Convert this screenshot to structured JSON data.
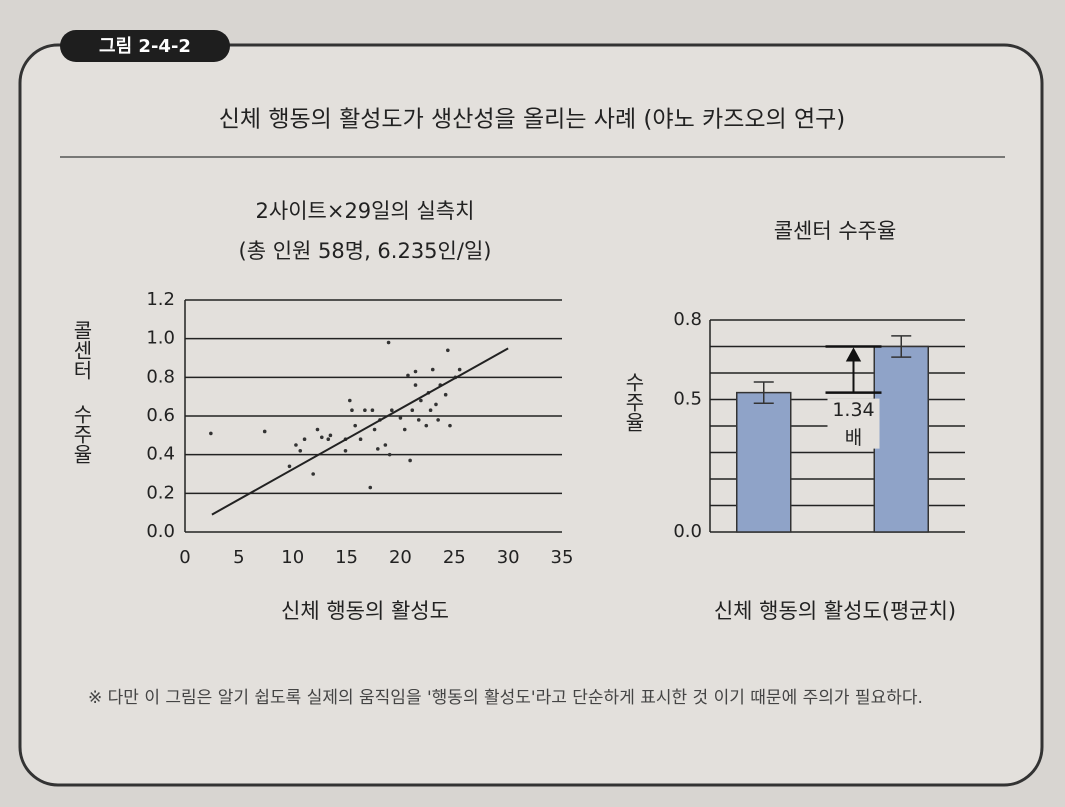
{
  "figure_label": "그림 2-4-2",
  "title": "신체 행동의 활성도가 생산성을 올리는 사례 (야노 카즈오의 연구)",
  "note": "※ 다만 이 그림은 알기 쉽도록 실제의 움직임을 '행동의 활성도'라고 단순하게 표시한 것 이기 때문에 주의가 필요하다.",
  "chart_data": [
    {
      "type": "scatter",
      "title": "2사이트×29일의 실측치",
      "subtitle": "(총 인원 58명, 6.235인/일)",
      "x_label": "신체 행동의 활성도",
      "y_label": "콜센터 수주율",
      "xlim": [
        0,
        35
      ],
      "xticks": [
        0,
        5,
        10,
        15,
        20,
        25,
        30,
        35
      ],
      "ylim": [
        0,
        1.2
      ],
      "yticks": [
        {
          "value": 0,
          "label": "0.0"
        },
        0.2,
        0.4,
        0.6,
        0.8,
        {
          "value": 1,
          "label": "1.0"
        },
        1.2
      ],
      "grid": true,
      "color": "#333333",
      "x": [
        2.4,
        7.4,
        9.7,
        10.3,
        10.7,
        11.1,
        11.9,
        12.3,
        12.7,
        13.3,
        13.5,
        14.9,
        15.3,
        15.5,
        15.8,
        16.3,
        16.7,
        17.2,
        17.4,
        17.6,
        17.9,
        18.1,
        18.6,
        18.9,
        19.0,
        19.2,
        20.0,
        20.4,
        20.9,
        20.7,
        21.1,
        21.4,
        21.7,
        21.9,
        22.4,
        22.6,
        22.8,
        23.0,
        23.3,
        23.5,
        23.7,
        24.2,
        24.4,
        24.6,
        25.1,
        25.5,
        14.9,
        21.4
      ],
      "values": [
        0.51,
        0.52,
        0.34,
        0.45,
        0.42,
        0.48,
        0.3,
        0.53,
        0.49,
        0.48,
        0.5,
        0.48,
        0.68,
        0.63,
        0.55,
        0.48,
        0.63,
        0.23,
        0.63,
        0.53,
        0.43,
        0.58,
        0.45,
        0.98,
        0.4,
        0.63,
        0.59,
        0.53,
        0.37,
        0.81,
        0.63,
        0.83,
        0.58,
        0.68,
        0.55,
        0.72,
        0.63,
        0.84,
        0.66,
        0.58,
        0.76,
        0.71,
        0.94,
        0.55,
        0.8,
        0.84,
        0.42,
        0.76
      ],
      "trendline": {
        "x": [
          2.5,
          30
        ],
        "values": [
          0.09,
          0.95
        ]
      }
    },
    {
      "type": "bar",
      "title": "콜센터 수주율",
      "x_label": "신체 행동의 활성도(평균치)",
      "y_label": "수주율",
      "categories": [
        null,
        null
      ],
      "values": [
        0.526,
        0.7
      ],
      "errors": [
        0.04,
        0.04
      ],
      "color": "#8fa3c8",
      "ylim": [
        0,
        0.8
      ],
      "yticks": [
        {
          "value": 0,
          "label": "0.0"
        },
        0.5,
        0.8
      ],
      "grid_lines": [
        0.1,
        0.2,
        0.3,
        0.4,
        0.6,
        0.7
      ],
      "annotation": [
        "1.34",
        "배"
      ]
    }
  ]
}
